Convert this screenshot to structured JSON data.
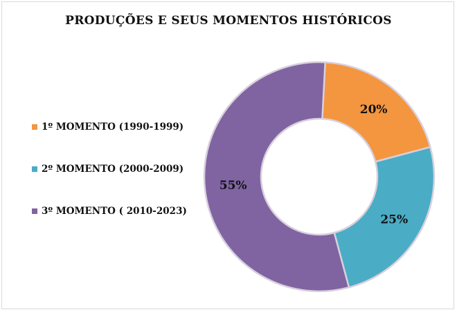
{
  "chart_data": {
    "type": "pie",
    "variant": "donut",
    "title": "PRODUÇÕES E SEUS MOMENTOS HISTÓRICOS",
    "categories": [
      "1º MOMENTO (1990-1999)",
      "2º MOMENTO (2000-2009)",
      "3º MOMENTO ( 2010-2023)"
    ],
    "values": [
      20,
      25,
      55
    ],
    "value_labels": [
      "20%",
      "25%",
      "55%"
    ],
    "colors": [
      "#f3963f",
      "#4bacc6",
      "#8064a2"
    ],
    "legend_position": "left"
  }
}
